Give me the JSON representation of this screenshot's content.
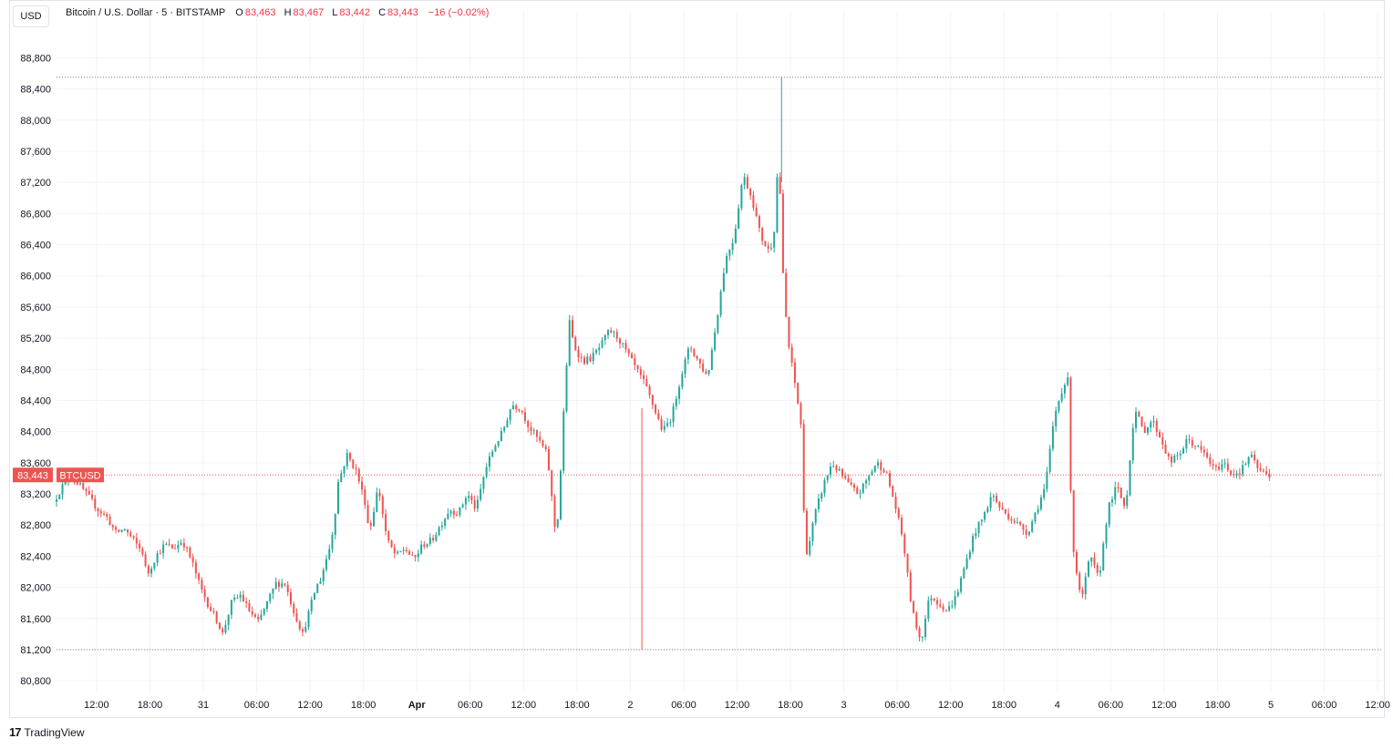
{
  "header": {
    "currency_button": "USD",
    "symbol_title": "Bitcoin / U.S. Dollar · 5 · BITSTAMP",
    "open_label": "O",
    "open_value": "83,463",
    "high_label": "H",
    "high_value": "83,467",
    "low_label": "L",
    "low_value": "83,442",
    "close_label": "C",
    "close_value": "83,443",
    "change": "−16 (−0.02%)"
  },
  "price_tag": {
    "value": "83,443",
    "symbol": "BTCUSD"
  },
  "footer": {
    "brand": "TradingView",
    "logo_text": "17"
  },
  "colors": {
    "up": "#26a69a",
    "down": "#ef5350",
    "grid": "#f0f3fa",
    "price_line": "#ef5350",
    "text": "#131722"
  },
  "chart_data": {
    "type": "candlestick",
    "y_ticks": [
      88800,
      88400,
      88000,
      87600,
      87200,
      86800,
      86400,
      86000,
      85600,
      85200,
      84800,
      84400,
      84000,
      83600,
      83200,
      82800,
      82400,
      82000,
      81600,
      81200,
      80800
    ],
    "y_tick_labels": [
      "88,800",
      "88,400",
      "88,000",
      "87,600",
      "87,200",
      "86,800",
      "86,400",
      "86,000",
      "85,600",
      "85,200",
      "84,800",
      "84,400",
      "84,000",
      "83,600",
      "83,200",
      "82,800",
      "82,400",
      "82,000",
      "81,600",
      "81,200",
      "80,800"
    ],
    "ylim": [
      80650,
      89050
    ],
    "x_tick_labels": [
      "12:00",
      "18:00",
      "31",
      "06:00",
      "12:00",
      "18:00",
      "Apr",
      "06:00",
      "12:00",
      "18:00",
      "2",
      "06:00",
      "12:00",
      "18:00",
      "3",
      "06:00",
      "12:00",
      "18:00",
      "4",
      "06:00",
      "12:00",
      "18:00",
      "5",
      "06:00",
      "12:00"
    ],
    "x_tick_hours": [
      12,
      18,
      24,
      30,
      36,
      42,
      48,
      54,
      60,
      66,
      72,
      78,
      84,
      90,
      96,
      102,
      108,
      114,
      120,
      126,
      132,
      138,
      144,
      150,
      156
    ],
    "x_tick_bold": [
      false,
      false,
      false,
      false,
      false,
      false,
      true,
      false,
      false,
      false,
      false,
      false,
      false,
      false,
      false,
      false,
      false,
      false,
      false,
      false,
      false,
      false,
      false,
      false,
      false
    ],
    "x_start_hour": 7.5,
    "x_end_hour": 156.5,
    "high_line": 88550,
    "low_line": 81200,
    "last_price": 83443,
    "price_path": [
      [
        7.5,
        83100
      ],
      [
        8.5,
        83300
      ],
      [
        9.5,
        83450
      ],
      [
        10.5,
        83300
      ],
      [
        11.5,
        83150
      ],
      [
        12.5,
        83000
      ],
      [
        13.5,
        82900
      ],
      [
        14.5,
        82700
      ],
      [
        15.5,
        82750
      ],
      [
        16.5,
        82600
      ],
      [
        17.5,
        82450
      ],
      [
        18.0,
        82150
      ],
      [
        19.0,
        82400
      ],
      [
        20.0,
        82550
      ],
      [
        21.0,
        82500
      ],
      [
        22.0,
        82600
      ],
      [
        23.0,
        82350
      ],
      [
        24.0,
        82000
      ],
      [
        25.0,
        81750
      ],
      [
        26.0,
        81550
      ],
      [
        26.5,
        81400
      ],
      [
        27.5,
        81800
      ],
      [
        28.5,
        81900
      ],
      [
        29.5,
        81700
      ],
      [
        30.5,
        81550
      ],
      [
        31.5,
        81800
      ],
      [
        32.5,
        82050
      ],
      [
        33.5,
        82050
      ],
      [
        34.5,
        81700
      ],
      [
        35.5,
        81400
      ],
      [
        36.5,
        81800
      ],
      [
        37.0,
        82000
      ],
      [
        37.5,
        82100
      ],
      [
        38.5,
        82500
      ],
      [
        39.0,
        82800
      ],
      [
        39.5,
        83350
      ],
      [
        40.5,
        83700
      ],
      [
        41.5,
        83500
      ],
      [
        42.5,
        83100
      ],
      [
        43.0,
        82700
      ],
      [
        44.0,
        83300
      ],
      [
        45.0,
        82600
      ],
      [
        46.0,
        82400
      ],
      [
        47.0,
        82500
      ],
      [
        48.0,
        82350
      ],
      [
        49.0,
        82550
      ],
      [
        50.0,
        82600
      ],
      [
        51.0,
        82800
      ],
      [
        52.0,
        83000
      ],
      [
        53.0,
        82950
      ],
      [
        54.0,
        83200
      ],
      [
        55.0,
        83000
      ],
      [
        56.0,
        83500
      ],
      [
        57.0,
        83800
      ],
      [
        58.0,
        84000
      ],
      [
        59.0,
        84350
      ],
      [
        60.0,
        84300
      ],
      [
        61.0,
        84050
      ],
      [
        62.0,
        83900
      ],
      [
        63.0,
        83700
      ],
      [
        64.0,
        82600
      ],
      [
        64.5,
        83500
      ],
      [
        65.0,
        84600
      ],
      [
        65.5,
        85400
      ],
      [
        66.0,
        85100
      ],
      [
        67.0,
        84900
      ],
      [
        68.0,
        84950
      ],
      [
        69.0,
        85100
      ],
      [
        70.0,
        85300
      ],
      [
        71.0,
        85200
      ],
      [
        72.0,
        85000
      ],
      [
        73.0,
        84800
      ],
      [
        74.0,
        84600
      ],
      [
        75.0,
        84300
      ],
      [
        76.0,
        84000
      ],
      [
        77.0,
        84200
      ],
      [
        78.0,
        84700
      ],
      [
        79.0,
        85100
      ],
      [
        80.0,
        84900
      ],
      [
        81.0,
        84700
      ],
      [
        82.0,
        85400
      ],
      [
        83.0,
        86200
      ],
      [
        84.0,
        86500
      ],
      [
        85.0,
        87300
      ],
      [
        86.0,
        87000
      ],
      [
        87.0,
        86500
      ],
      [
        88.0,
        86300
      ],
      [
        88.5,
        86600
      ],
      [
        89.0,
        87600
      ],
      [
        89.5,
        86000
      ],
      [
        90.0,
        85200
      ],
      [
        91.0,
        84500
      ],
      [
        91.5,
        84100
      ],
      [
        92.0,
        82400
      ],
      [
        92.5,
        82600
      ],
      [
        93.0,
        82900
      ],
      [
        94.0,
        83300
      ],
      [
        95.0,
        83600
      ],
      [
        96.0,
        83450
      ],
      [
        97.0,
        83300
      ],
      [
        98.0,
        83200
      ],
      [
        99.0,
        83400
      ],
      [
        100.0,
        83600
      ],
      [
        101.0,
        83500
      ],
      [
        102.0,
        83100
      ],
      [
        103.0,
        82600
      ],
      [
        104.0,
        81700
      ],
      [
        105.0,
        81300
      ],
      [
        106.0,
        81900
      ],
      [
        107.0,
        81800
      ],
      [
        108.0,
        81700
      ],
      [
        109.0,
        81900
      ],
      [
        110.0,
        82300
      ],
      [
        111.0,
        82700
      ],
      [
        112.0,
        82900
      ],
      [
        113.0,
        83200
      ],
      [
        114.0,
        83000
      ],
      [
        115.0,
        82900
      ],
      [
        116.0,
        82800
      ],
      [
        117.0,
        82700
      ],
      [
        118.0,
        83000
      ],
      [
        119.0,
        83300
      ],
      [
        120.0,
        84200
      ],
      [
        121.0,
        84600
      ],
      [
        121.5,
        84650
      ],
      [
        122.0,
        82600
      ],
      [
        123.0,
        81800
      ],
      [
        124.0,
        82400
      ],
      [
        125.0,
        82100
      ],
      [
        126.0,
        83000
      ],
      [
        127.0,
        83300
      ],
      [
        128.0,
        83000
      ],
      [
        129.0,
        84300
      ],
      [
        130.0,
        84000
      ],
      [
        131.0,
        84150
      ],
      [
        132.0,
        83900
      ],
      [
        133.0,
        83600
      ],
      [
        134.0,
        83700
      ],
      [
        135.0,
        83900
      ],
      [
        136.0,
        83800
      ],
      [
        137.0,
        83700
      ],
      [
        138.0,
        83500
      ],
      [
        139.0,
        83600
      ],
      [
        140.0,
        83450
      ],
      [
        141.0,
        83500
      ],
      [
        142.0,
        83700
      ],
      [
        143.0,
        83500
      ],
      [
        144.0,
        83443
      ]
    ],
    "flash_wick": [
      73.3,
      81200
    ]
  }
}
